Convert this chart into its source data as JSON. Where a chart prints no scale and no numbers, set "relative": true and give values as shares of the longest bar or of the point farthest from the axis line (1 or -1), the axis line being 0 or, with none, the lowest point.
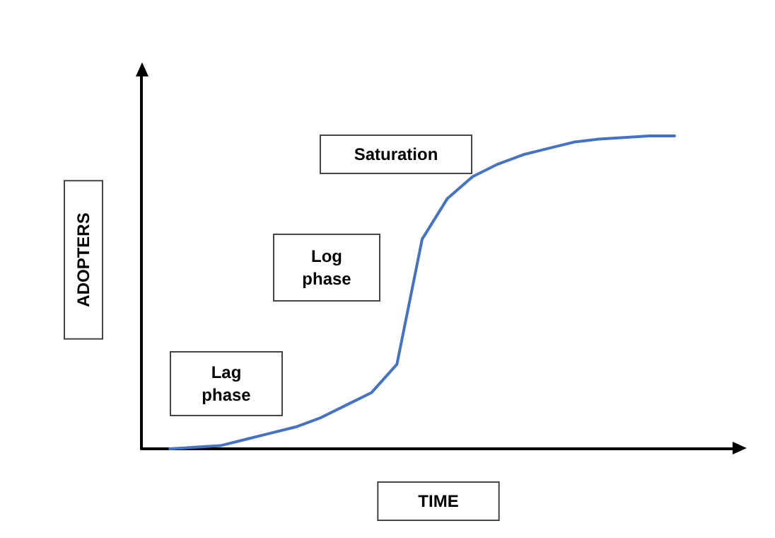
{
  "chart_data": {
    "type": "line",
    "relative": true,
    "xlabel": "TIME",
    "ylabel": "ADOPTERS",
    "color": "#4472c4",
    "annotations": [
      "Lag phase",
      "Log phase",
      "Saturation"
    ],
    "categories": [
      null,
      null,
      null,
      null,
      null,
      null,
      null,
      null,
      null,
      null,
      null,
      null,
      null,
      null,
      null,
      null,
      null,
      null,
      null,
      null,
      null
    ],
    "values": [
      0,
      0.005,
      0.01,
      0.03,
      0.05,
      0.07,
      0.1,
      0.14,
      0.18,
      0.27,
      0.67,
      0.8,
      0.87,
      0.91,
      0.94,
      0.96,
      0.98,
      0.99,
      0.995,
      1,
      1
    ],
    "marker": "none",
    "grid": false
  }
}
